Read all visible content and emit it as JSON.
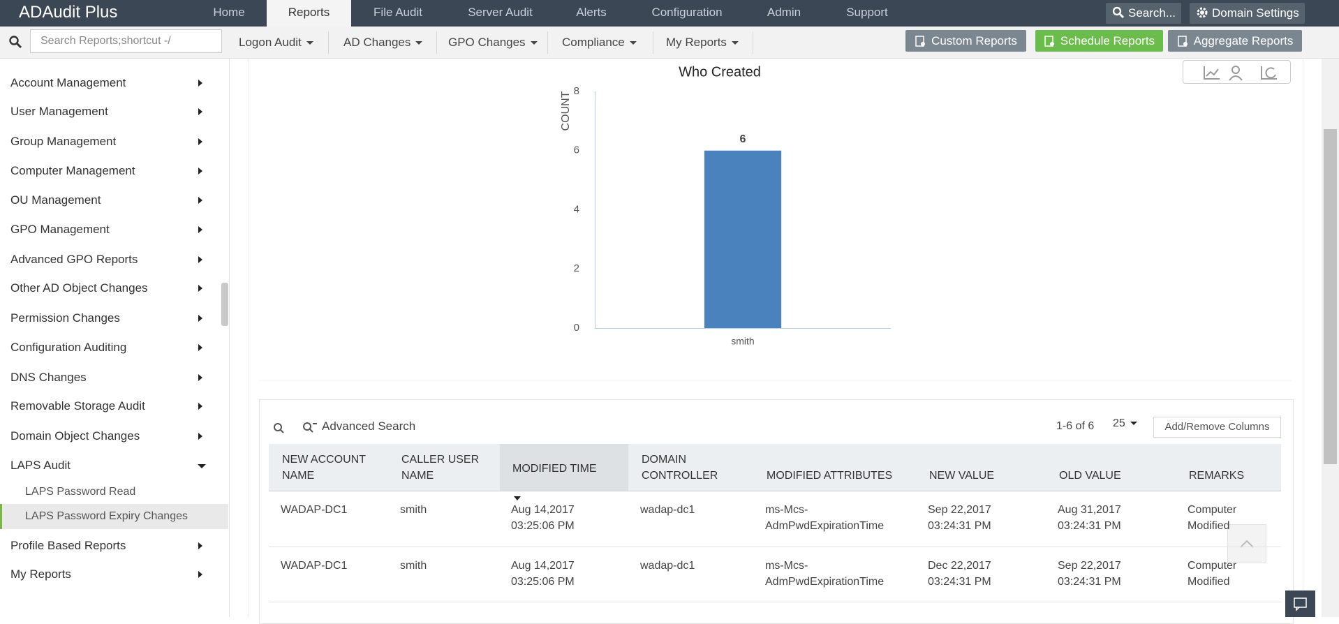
{
  "header": {
    "logo": "ADAudit Plus",
    "tabs": [
      "Home",
      "Reports",
      "File Audit",
      "Server Audit",
      "Alerts",
      "Configuration",
      "Admin",
      "Support"
    ],
    "active_tab": 1,
    "search": "Search...",
    "domain_settings": "Domain Settings"
  },
  "toolbar": {
    "search_placeholder": "Search Reports;shortcut -/",
    "menus": [
      "Logon Audit",
      "AD Changes",
      "GPO Changes",
      "Compliance",
      "My Reports"
    ],
    "buttons": [
      "Custom Reports",
      "Schedule Reports",
      "Aggregate Reports"
    ]
  },
  "sidebar": {
    "items": [
      "Account Management",
      "User Management",
      "Group Management",
      "Computer Management",
      "OU Management",
      "GPO Management",
      "Advanced GPO Reports",
      "Other AD Object Changes",
      "Permission Changes",
      "Configuration Auditing",
      "DNS Changes",
      "Removable Storage Audit",
      "Domain Object Changes",
      "LAPS Audit"
    ],
    "sub_items": [
      "LAPS Password Read",
      "LAPS Password Expiry Changes"
    ],
    "selected_sub_item": 1,
    "items_after": [
      "Profile Based Reports",
      "My Reports"
    ]
  },
  "chart_data": {
    "type": "bar",
    "title": "Who Created",
    "y_label": "COUNT",
    "categories": [
      "smith"
    ],
    "values": [
      6
    ],
    "color": "#4a82bd",
    "ylim": [
      0,
      8
    ],
    "yticks": [
      0,
      2,
      4,
      6,
      8
    ],
    "grid": false
  },
  "table": {
    "advanced_search": "Advanced Search",
    "pagination": "1-6 of 6",
    "page_size": "25",
    "columns_button": "Add/Remove Columns",
    "columns": [
      "NEW ACCOUNT NAME",
      "CALLER USER NAME",
      "MODIFIED TIME",
      "DOMAIN CONTROLLER",
      "MODIFIED ATTRIBUTES",
      "NEW VALUE",
      "OLD VALUE",
      "REMARKS"
    ],
    "sorted_column": 2,
    "rows": [
      [
        "WADAP-DC1",
        "smith",
        "Aug 14,2017 03:25:06 PM",
        "wadap-dc1",
        "ms-Mcs-AdmPwdExpirationTime",
        "Sep 22,2017 03:24:31 PM",
        "Aug 31,2017 03:24:31 PM",
        "Computer Modified"
      ],
      [
        "WADAP-DC1",
        "smith",
        "Aug 14,2017 03:25:06 PM",
        "wadap-dc1",
        "ms-Mcs-AdmPwdExpirationTime",
        "Dec 22,2017 03:24:31 PM",
        "Sep 22,2017 03:24:31 PM",
        "Computer Modified"
      ]
    ]
  }
}
